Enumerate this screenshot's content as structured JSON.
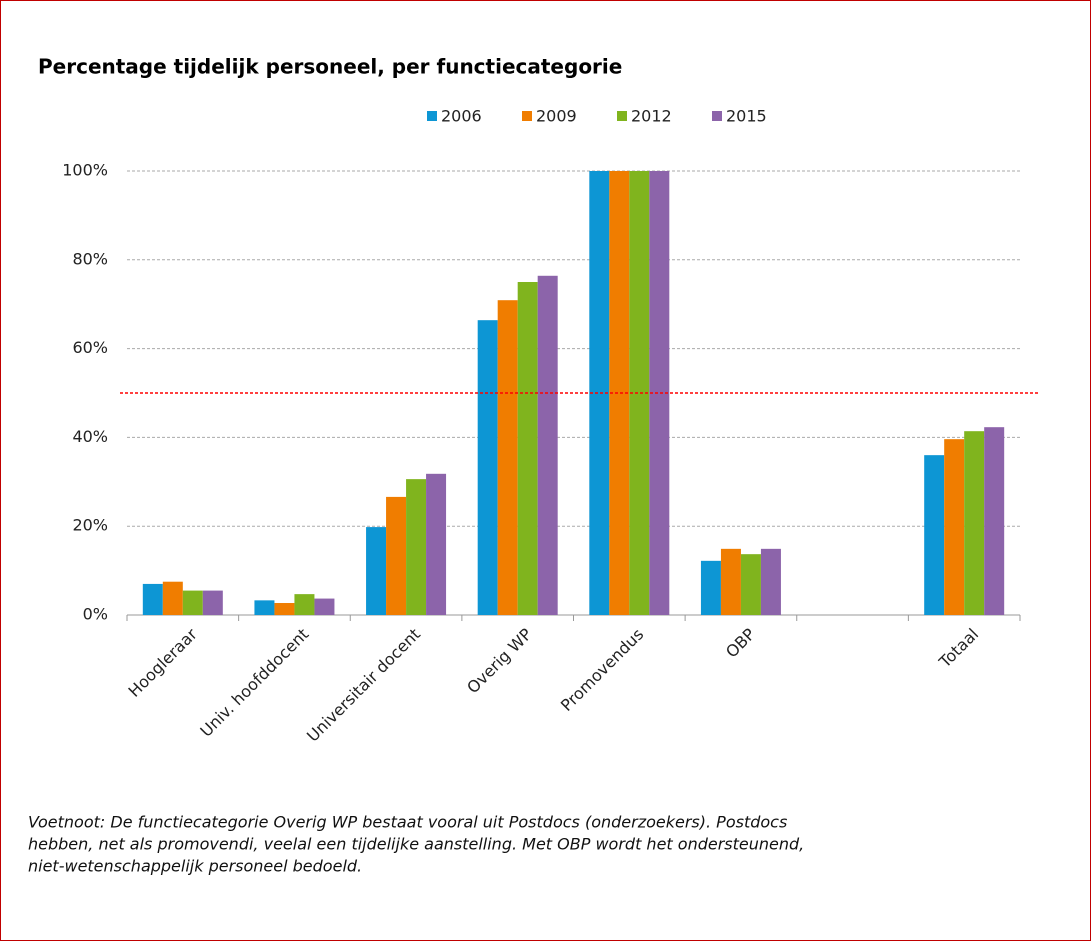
{
  "chart_data": {
    "type": "bar",
    "title": "Percentage tijdelijk personeel, per functiecategorie",
    "categories": [
      "Hoogleraar",
      "Univ. hoofddocent",
      "Universitair docent",
      "Overig WP",
      "Promovendus",
      "OBP",
      null,
      "Totaal"
    ],
    "series": [
      {
        "name": "2006",
        "color": "#0d96d4",
        "values": [
          7,
          3.3,
          19.8,
          66.4,
          100,
          12.2,
          null,
          36
        ]
      },
      {
        "name": "2009",
        "color": "#f07d00",
        "values": [
          7.5,
          2.7,
          26.6,
          70.9,
          100,
          14.9,
          null,
          39.6
        ]
      },
      {
        "name": "2012",
        "color": "#80b41e",
        "values": [
          5.5,
          4.7,
          30.6,
          75,
          100,
          13.7,
          null,
          41.4
        ]
      },
      {
        "name": "2015",
        "color": "#8c64aa",
        "values": [
          5.5,
          3.7,
          31.8,
          76.4,
          100,
          14.9,
          null,
          42.3
        ]
      }
    ],
    "ylim": [
      0,
      100
    ],
    "yticks": [
      {
        "value": 0,
        "label": "0%"
      },
      {
        "value": 20,
        "label": "20%"
      },
      {
        "value": 40,
        "label": "40%"
      },
      {
        "value": 60,
        "label": "60%"
      },
      {
        "value": 80,
        "label": "80%"
      },
      {
        "value": 100,
        "label": "100%"
      }
    ],
    "grid": true,
    "reference_line": {
      "value": 50,
      "color": "#ff0000"
    },
    "footnote": [
      "Voetnoot: De functiecategorie Overig WP bestaat vooral uit Postdocs (onderzoekers). Postdocs",
      "hebben, net als promovendi, veelal een tijdelijke aanstelling. Met OBP wordt het ondersteunend,",
      "niet-wetenschappelijk personeel bedoeld."
    ]
  }
}
